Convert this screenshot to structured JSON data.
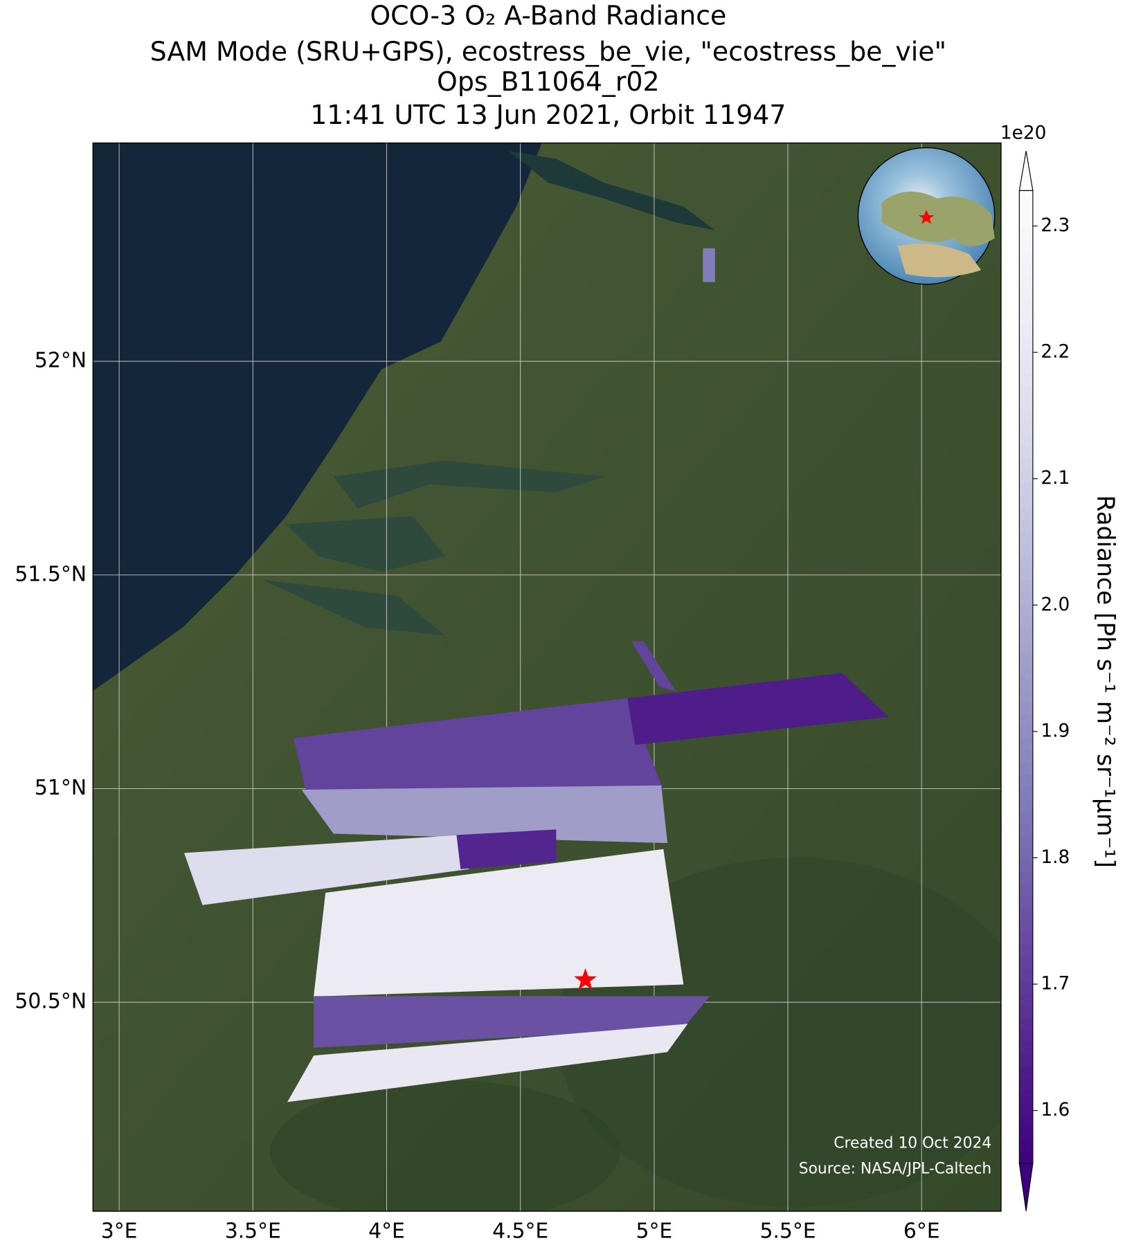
{
  "chart_data": {
    "type": "map",
    "title": [
      "OCO-3 O₂ A-Band Radiance",
      "SAM Mode (SRU+GPS), ecostress_be_vie, \"ecostress_be_vie\"",
      "Ops_B11064_r02",
      "11:41 UTC 13 Jun 2021, Orbit 11947"
    ],
    "xlim": [
      2.902,
      6.297
    ],
    "ylim": [
      50.011,
      52.511
    ],
    "xticks": [
      {
        "value": 3,
        "label": "3°E"
      },
      {
        "value": 3.5,
        "label": "3.5°E"
      },
      {
        "value": 4,
        "label": "4°E"
      },
      {
        "value": 4.5,
        "label": "4.5°E"
      },
      {
        "value": 5,
        "label": "5°E"
      },
      {
        "value": 5.5,
        "label": "5.5°E"
      },
      {
        "value": 6,
        "label": "6°E"
      }
    ],
    "yticks": [
      {
        "value": 50.5,
        "label": "50.5°N"
      },
      {
        "value": 51,
        "label": "51°N"
      },
      {
        "value": 51.5,
        "label": "51.5°N"
      },
      {
        "value": 52,
        "label": "52°N"
      }
    ],
    "grid": true,
    "colorbar": {
      "label": "Radiance [Ph s⁻¹ m⁻² sr⁻¹μm⁻¹]",
      "offset": "1e20",
      "clim": [
        1.558,
        2.328
      ],
      "ticks": [
        1.6,
        1.7,
        1.8,
        1.9,
        {
          "value": 2,
          "label": "2.0"
        },
        2.1,
        2.2,
        2.3
      ],
      "colors": [
        "#3f007d",
        "#54278f",
        "#6a51a3",
        "#807dba",
        "#9e9ac8",
        "#bcbddc",
        "#dadaeb",
        "#efedf5",
        "#fcfbfd"
      ]
    },
    "swath": [
      {
        "lon": [
          3.653,
          4.901,
          5.034,
          3.698
        ],
        "lat": [
          51.118,
          51.211,
          50.997,
          50.997
        ],
        "value": 1.72
      },
      {
        "lon": [
          4.901,
          5.703,
          5.875,
          4.93
        ],
        "lat": [
          51.211,
          51.27,
          51.168,
          51.103
        ],
        "value": 1.63
      },
      {
        "lon": [
          3.683,
          5.026,
          5.049,
          3.802
        ],
        "lat": [
          50.997,
          51.007,
          50.873,
          50.895
        ],
        "value": 1.95
      },
      {
        "lon": [
          3.244,
          4.277,
          4.307,
          3.312
        ],
        "lat": [
          50.849,
          50.891,
          50.812,
          50.728
        ],
        "value": 2.15
      },
      {
        "lon": [
          4.262,
          4.633,
          4.633,
          4.277
        ],
        "lat": [
          50.891,
          50.904,
          50.83,
          50.812
        ],
        "value": 1.65
      },
      {
        "lon": [
          3.772,
          5.034,
          5.109,
          3.728
        ],
        "lat": [
          50.756,
          50.858,
          50.542,
          50.514
        ],
        "value": 2.22
      },
      {
        "lon": [
          3.728,
          5.207,
          5.109,
          3.728
        ],
        "lat": [
          50.514,
          50.514,
          50.44,
          50.394
        ],
        "value": 1.75
      },
      {
        "lon": [
          3.728,
          5.124,
          5.049,
          3.63
        ],
        "lat": [
          50.375,
          50.449,
          50.384,
          50.267
        ],
        "value": 2.2
      },
      {
        "lon": [
          5.183,
          5.227,
          5.227,
          5.183
        ],
        "lat": [
          52.264,
          52.264,
          52.186,
          52.186
        ],
        "value": 1.85
      },
      {
        "lon": [
          4.916,
          4.96,
          5.079,
          5.02
        ],
        "lat": [
          51.344,
          51.344,
          51.229,
          51.239
        ],
        "value": 1.72
      }
    ],
    "target": {
      "lon": 4.743,
      "lat": 50.552,
      "color": "#ff0000"
    },
    "credit": [
      "Created 10 Oct 2024",
      "Source: NASA/JPL-Caltech"
    ]
  }
}
